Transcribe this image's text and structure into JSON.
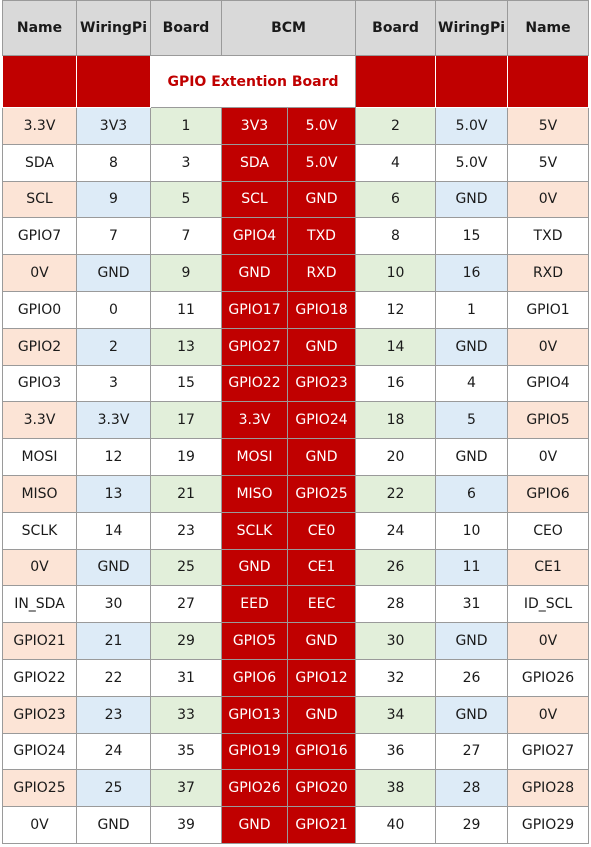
{
  "headers": [
    "Name",
    "WiringPi",
    "Board",
    "BCM",
    "Board",
    "WiringPi",
    "Name"
  ],
  "banner_title": "GPIO Extention Board",
  "colors": {
    "header_bg": "#d9d9d9",
    "bcm_red": "#c00000",
    "orange": "#fce4d6",
    "blue": "#ddebf7",
    "green": "#e2efda"
  },
  "rows": [
    {
      "lname": "3.3V",
      "lwpi": "3V3",
      "lboard": "1",
      "lbcm": "3V3",
      "rbcm": "5.0V",
      "rboard": "2",
      "rwpi": "5.0V",
      "rname": "5V",
      "lcolor": "orange",
      "lwcolor": "blue",
      "rwcolor": "blue",
      "rcolor": "orange"
    },
    {
      "lname": "SDA",
      "lwpi": "8",
      "lboard": "3",
      "lbcm": "SDA",
      "rbcm": "5.0V",
      "rboard": "4",
      "rwpi": "5.0V",
      "rname": "5V",
      "lcolor": "white",
      "lwcolor": "white",
      "rwcolor": "white",
      "rcolor": "white"
    },
    {
      "lname": "SCL",
      "lwpi": "9",
      "lboard": "5",
      "lbcm": "SCL",
      "rbcm": "GND",
      "rboard": "6",
      "rwpi": "GND",
      "rname": "0V",
      "lcolor": "orange",
      "lwcolor": "blue",
      "rwcolor": "blue",
      "rcolor": "orange"
    },
    {
      "lname": "GPIO7",
      "lwpi": "7",
      "lboard": "7",
      "lbcm": "GPIO4",
      "rbcm": "TXD",
      "rboard": "8",
      "rwpi": "15",
      "rname": "TXD",
      "lcolor": "white",
      "lwcolor": "white",
      "rwcolor": "white",
      "rcolor": "white"
    },
    {
      "lname": "0V",
      "lwpi": "GND",
      "lboard": "9",
      "lbcm": "GND",
      "rbcm": "RXD",
      "rboard": "10",
      "rwpi": "16",
      "rname": "RXD",
      "lcolor": "orange",
      "lwcolor": "blue",
      "rwcolor": "blue",
      "rcolor": "orange"
    },
    {
      "lname": "GPIO0",
      "lwpi": "0",
      "lboard": "11",
      "lbcm": "GPIO17",
      "rbcm": "GPIO18",
      "rboard": "12",
      "rwpi": "1",
      "rname": "GPIO1",
      "lcolor": "white",
      "lwcolor": "white",
      "rwcolor": "white",
      "rcolor": "white"
    },
    {
      "lname": "GPIO2",
      "lwpi": "2",
      "lboard": "13",
      "lbcm": "GPIO27",
      "rbcm": "GND",
      "rboard": "14",
      "rwpi": "GND",
      "rname": "0V",
      "lcolor": "orange",
      "lwcolor": "blue",
      "rwcolor": "blue",
      "rcolor": "orange"
    },
    {
      "lname": "GPIO3",
      "lwpi": "3",
      "lboard": "15",
      "lbcm": "GPIO22",
      "rbcm": "GPIO23",
      "rboard": "16",
      "rwpi": "4",
      "rname": "GPIO4",
      "lcolor": "white",
      "lwcolor": "white",
      "rwcolor": "white",
      "rcolor": "white"
    },
    {
      "lname": "3.3V",
      "lwpi": "3.3V",
      "lboard": "17",
      "lbcm": "3.3V",
      "rbcm": "GPIO24",
      "rboard": "18",
      "rwpi": "5",
      "rname": "GPIO5",
      "lcolor": "orange",
      "lwcolor": "blue",
      "rwcolor": "blue",
      "rcolor": "orange"
    },
    {
      "lname": "MOSI",
      "lwpi": "12",
      "lboard": "19",
      "lbcm": "MOSI",
      "rbcm": "GND",
      "rboard": "20",
      "rwpi": "GND",
      "rname": "0V",
      "lcolor": "white",
      "lwcolor": "white",
      "rwcolor": "white",
      "rcolor": "white"
    },
    {
      "lname": "MISO",
      "lwpi": "13",
      "lboard": "21",
      "lbcm": "MISO",
      "rbcm": "GPIO25",
      "rboard": "22",
      "rwpi": "6",
      "rname": "GPIO6",
      "lcolor": "orange",
      "lwcolor": "blue",
      "rwcolor": "blue",
      "rcolor": "orange"
    },
    {
      "lname": "SCLK",
      "lwpi": "14",
      "lboard": "23",
      "lbcm": "SCLK",
      "rbcm": "CE0",
      "rboard": "24",
      "rwpi": "10",
      "rname": "CEO",
      "lcolor": "white",
      "lwcolor": "white",
      "rwcolor": "white",
      "rcolor": "white"
    },
    {
      "lname": "0V",
      "lwpi": "GND",
      "lboard": "25",
      "lbcm": "GND",
      "rbcm": "CE1",
      "rboard": "26",
      "rwpi": "11",
      "rname": "CE1",
      "lcolor": "orange",
      "lwcolor": "blue",
      "rwcolor": "blue",
      "rcolor": "orange"
    },
    {
      "lname": "IN_SDA",
      "lwpi": "30",
      "lboard": "27",
      "lbcm": "EED",
      "rbcm": "EEC",
      "rboard": "28",
      "rwpi": "31",
      "rname": "ID_SCL",
      "lcolor": "white",
      "lwcolor": "white",
      "rwcolor": "white",
      "rcolor": "white"
    },
    {
      "lname": "GPIO21",
      "lwpi": "21",
      "lboard": "29",
      "lbcm": "GPIO5",
      "rbcm": "GND",
      "rboard": "30",
      "rwpi": "GND",
      "rname": "0V",
      "lcolor": "orange",
      "lwcolor": "blue",
      "rwcolor": "blue",
      "rcolor": "orange"
    },
    {
      "lname": "GPIO22",
      "lwpi": "22",
      "lboard": "31",
      "lbcm": "GPIO6",
      "rbcm": "GPIO12",
      "rboard": "32",
      "rwpi": "26",
      "rname": "GPIO26",
      "lcolor": "white",
      "lwcolor": "white",
      "rwcolor": "white",
      "rcolor": "white"
    },
    {
      "lname": "GPIO23",
      "lwpi": "23",
      "lboard": "33",
      "lbcm": "GPIO13",
      "rbcm": "GND",
      "rboard": "34",
      "rwpi": "GND",
      "rname": "0V",
      "lcolor": "orange",
      "lwcolor": "blue",
      "rwcolor": "blue",
      "rcolor": "orange"
    },
    {
      "lname": "GPIO24",
      "lwpi": "24",
      "lboard": "35",
      "lbcm": "GPIO19",
      "rbcm": "GPIO16",
      "rboard": "36",
      "rwpi": "27",
      "rname": "GPIO27",
      "lcolor": "white",
      "lwcolor": "white",
      "rwcolor": "white",
      "rcolor": "white"
    },
    {
      "lname": "GPIO25",
      "lwpi": "25",
      "lboard": "37",
      "lbcm": "GPIO26",
      "rbcm": "GPIO20",
      "rboard": "38",
      "rwpi": "28",
      "rname": "GPIO28",
      "lcolor": "orange",
      "lwcolor": "blue",
      "rwcolor": "blue",
      "rcolor": "orange"
    },
    {
      "lname": "0V",
      "lwpi": "GND",
      "lboard": "39",
      "lbcm": "GND",
      "rbcm": "GPIO21",
      "rboard": "40",
      "rwpi": "29",
      "rname": "GPIO29",
      "lcolor": "white",
      "lwcolor": "white",
      "rwcolor": "white",
      "rcolor": "white"
    }
  ]
}
